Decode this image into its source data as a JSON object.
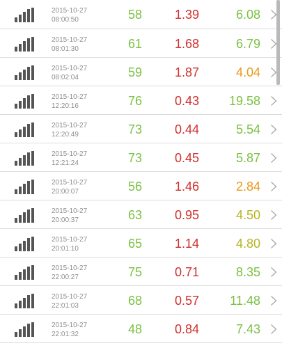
{
  "colors": {
    "green": "#7ac143",
    "red": "#d0312d",
    "orange": "#e89a1c",
    "olive": "#b8b421",
    "timestamp": "#8e8e8e",
    "icon": "#555555",
    "divider": "#dcdcdc"
  },
  "icons": {
    "row_icon": "signal-bars-icon",
    "row_action": "chevron-right-icon"
  },
  "rows": [
    {
      "date": "2015-10-27",
      "time": "08:00:50",
      "v1": "58",
      "v2": "1.39",
      "v3": "6.08",
      "c1": "#7ac143",
      "c2": "#d0312d",
      "c3": "#7ac143"
    },
    {
      "date": "2015-10-27",
      "time": "08:01:30",
      "v1": "61",
      "v2": "1.68",
      "v3": "6.79",
      "c1": "#7ac143",
      "c2": "#d0312d",
      "c3": "#7ac143"
    },
    {
      "date": "2015-10-27",
      "time": "08:02:04",
      "v1": "59",
      "v2": "1.87",
      "v3": "4.04",
      "c1": "#7ac143",
      "c2": "#d0312d",
      "c3": "#e89a1c"
    },
    {
      "date": "2015-10-27",
      "time": "12:20:16",
      "v1": "76",
      "v2": "0.43",
      "v3": "19.58",
      "c1": "#7ac143",
      "c2": "#d0312d",
      "c3": "#7ac143"
    },
    {
      "date": "2015-10-27",
      "time": "12:20:49",
      "v1": "73",
      "v2": "0.44",
      "v3": "5.54",
      "c1": "#7ac143",
      "c2": "#d0312d",
      "c3": "#7ac143"
    },
    {
      "date": "2015-10-27",
      "time": "12:21:24",
      "v1": "73",
      "v2": "0.45",
      "v3": "5.87",
      "c1": "#7ac143",
      "c2": "#d0312d",
      "c3": "#7ac143"
    },
    {
      "date": "2015-10-27",
      "time": "20:00:07",
      "v1": "56",
      "v2": "1.46",
      "v3": "2.84",
      "c1": "#7ac143",
      "c2": "#d0312d",
      "c3": "#e89a1c"
    },
    {
      "date": "2015-10-27",
      "time": "20:00:37",
      "v1": "63",
      "v2": "0.95",
      "v3": "4.50",
      "c1": "#7ac143",
      "c2": "#d0312d",
      "c3": "#b8b421"
    },
    {
      "date": "2015-10-27",
      "time": "20:01:10",
      "v1": "65",
      "v2": "1.14",
      "v3": "4.80",
      "c1": "#7ac143",
      "c2": "#d0312d",
      "c3": "#b8b421"
    },
    {
      "date": "2015-10-27",
      "time": "22:00:27",
      "v1": "75",
      "v2": "0.71",
      "v3": "8.35",
      "c1": "#7ac143",
      "c2": "#d0312d",
      "c3": "#7ac143"
    },
    {
      "date": "2015-10-27",
      "time": "22:01:03",
      "v1": "68",
      "v2": "0.57",
      "v3": "11.48",
      "c1": "#7ac143",
      "c2": "#d0312d",
      "c3": "#7ac143"
    },
    {
      "date": "2015-10-27",
      "time": "22:01:32",
      "v1": "48",
      "v2": "0.84",
      "v3": "7.43",
      "c1": "#7ac143",
      "c2": "#d0312d",
      "c3": "#7ac143"
    }
  ]
}
